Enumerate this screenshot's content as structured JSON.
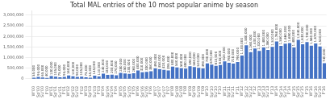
{
  "chart_data": {
    "type": "bar",
    "title": "Total MAL entries of the 10 most popular anime by season",
    "categories": [
      "W'00",
      "Sp'00",
      "Su'00",
      "F'00",
      "W'01",
      "Sp'01",
      "Su'01",
      "F'01",
      "W'02",
      "Sp'02",
      "Su'02",
      "F'02",
      "W'03",
      "Sp'03",
      "Su'03",
      "F'03",
      "W'04",
      "Sp'04",
      "Su'04",
      "F'04",
      "W'05",
      "Sp'05",
      "Su'05",
      "F'05",
      "W'06",
      "Sp'06",
      "Su'06",
      "F'06",
      "W'07",
      "Sp'07",
      "Su'07",
      "F'07",
      "W'08",
      "Sp'08",
      "Su'08",
      "F'08",
      "W'09",
      "Sp'09",
      "Su'09",
      "F'09",
      "W'10",
      "Sp'10",
      "Su'10",
      "F'10",
      "W'11",
      "Sp'11",
      "Su'11",
      "F'11",
      "W'12",
      "Sp'12",
      "Su'12",
      "F'12",
      "W'13",
      "Sp'13",
      "Su'13",
      "F'13",
      "W'14",
      "Sp'14",
      "Su'14",
      "F'14",
      "W'15",
      "Sp'15",
      "Su'15",
      "F'15",
      "W'16",
      "Sp'16",
      "Su'16",
      "F'16"
    ],
    "values": [
      55000,
      95000,
      65000,
      40000,
      130000,
      105000,
      75000,
      95000,
      160000,
      120000,
      90000,
      105000,
      75000,
      55000,
      145000,
      110000,
      240000,
      185000,
      200000,
      170000,
      280000,
      250000,
      230000,
      260000,
      400000,
      310000,
      330000,
      360000,
      490000,
      450000,
      420000,
      395000,
      580000,
      540000,
      500000,
      480000,
      590000,
      560000,
      520000,
      490000,
      730000,
      670000,
      610000,
      655000,
      820000,
      760000,
      720000,
      790000,
      1100000,
      1580000,
      1260000,
      1430000,
      1320000,
      1480000,
      1360000,
      1510000,
      1760000,
      1550000,
      1660000,
      1690000,
      1480000,
      1840000,
      1630000,
      1730000,
      1560000,
      1670000,
      1520000,
      740000
    ],
    "value_labels": [
      "55,000",
      "95,000",
      "65,000",
      "40,000",
      "130,000",
      "105,000",
      "75,000",
      "95,000",
      "160,000",
      "120,000",
      "90,000",
      "105,000",
      "75,000",
      "55,000",
      "145,000",
      "110,000",
      "240,000",
      "185,000",
      "200,000",
      "170,000",
      "280,000",
      "250,000",
      "230,000",
      "260,000",
      "400,000",
      "310,000",
      "330,000",
      "360,000",
      "490,000",
      "450,000",
      "420,000",
      "395,000",
      "580,000",
      "540,000",
      "500,000",
      "480,000",
      "590,000",
      "560,000",
      "520,000",
      "490,000",
      "730,000",
      "670,000",
      "610,000",
      "655,000",
      "820,000",
      "760,000",
      "720,000",
      "790,000",
      "1,100,000",
      "1,580,000",
      "1,260,000",
      "1,430,000",
      "1,320,000",
      "1,480,000",
      "1,360,000",
      "1,510,000",
      "1,760,000",
      "1,550,000",
      "1,660,000",
      "1,690,000",
      "1,480,000",
      "1,840,000",
      "1,630,000",
      "1,730,000",
      "1,560,000",
      "1,670,000",
      "1,520,000",
      "740,000"
    ],
    "color": "#4472c4",
    "ylim": [
      0,
      3200000
    ],
    "yticks": [
      0,
      {
        "value": 500000,
        "label": "500,000"
      },
      {
        "value": 1000000,
        "label": "1,000,000"
      },
      {
        "value": 1500000,
        "label": "1,500,000"
      },
      {
        "value": 2000000,
        "label": "2,000,000"
      },
      {
        "value": 2500000,
        "label": "2,500,000"
      },
      {
        "value": 3000000,
        "label": "3,000,000"
      }
    ],
    "grid": true,
    "data_labels": true
  }
}
